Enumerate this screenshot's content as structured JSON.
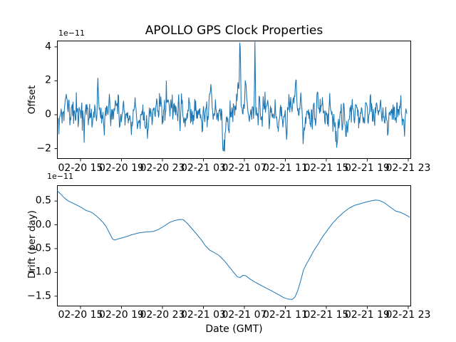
{
  "figure": {
    "title": "APOLLO GPS Clock Properties",
    "background": "#ffffff",
    "line_color": "#1f77b4",
    "spine_color": "#000000"
  },
  "chart_data": [
    {
      "type": "line",
      "title": "APOLLO GPS Clock Properties",
      "ylabel": "Offset",
      "xlabel": "",
      "y_offset_multiplier": "1e−11",
      "legend": "none",
      "grid": false,
      "ylim": [
        -2.61,
        4.37
      ],
      "y_ticks": {
        "values": [
          4,
          2,
          0,
          -2
        ],
        "labels": [
          "4",
          "2",
          "0",
          "−2"
        ]
      },
      "x_ticks": {
        "fracs": [
          0.0664,
          0.1821,
          0.2978,
          0.4135,
          0.5291,
          0.6448,
          0.7605,
          0.8762,
          0.9919
        ],
        "labels": [
          "02-20 15",
          "02-20 19",
          "02-20 23",
          "02-21 03",
          "02-21 07",
          "02-21 11",
          "02-21 15",
          "02-21 19",
          "02-21 23"
        ]
      },
      "series_model": {
        "description": "dense noisy offset series, values in 1e-11 units",
        "seed": 11,
        "n": 760,
        "phi": 0.5,
        "sigma": 0.42,
        "mean": 0.07,
        "x_start": 0.004,
        "x_end": 0.988,
        "clamp": [
          -2.5,
          4.28
        ],
        "features": [
          [
            0.006,
            -0.5,
            0.006
          ],
          [
            0.026,
            1.0,
            0.01
          ],
          [
            0.076,
            -1.4,
            0.008
          ],
          [
            0.115,
            1.8,
            0.007
          ],
          [
            0.148,
            1.2,
            0.008
          ],
          [
            0.209,
            -0.9,
            0.01
          ],
          [
            0.251,
            -1.2,
            0.008
          ],
          [
            0.3,
            0.8,
            0.01
          ],
          [
            0.435,
            1.5,
            0.01
          ],
          [
            0.47,
            -1.6,
            0.009
          ],
          [
            0.512,
            1.5,
            0.012
          ],
          [
            0.517,
            3.9,
            0.005
          ],
          [
            0.533,
            1.7,
            0.007
          ],
          [
            0.559,
            4.05,
            0.003
          ],
          [
            0.648,
            -1.0,
            0.009
          ],
          [
            0.674,
            1.6,
            0.01
          ],
          [
            0.695,
            -2.2,
            0.008
          ],
          [
            0.736,
            1.2,
            0.008
          ],
          [
            0.79,
            -1.55,
            0.008
          ],
          [
            0.885,
            1.1,
            0.008
          ],
          [
            0.934,
            -1.15,
            0.008
          ]
        ]
      }
    },
    {
      "type": "line",
      "title": "",
      "ylabel": "Drift (per day)",
      "xlabel": "Date (GMT)",
      "y_offset_multiplier": "1e−11",
      "legend": "none",
      "grid": false,
      "ylim": [
        -1.71,
        0.83
      ],
      "y_ticks": {
        "values": [
          0.5,
          0.0,
          -0.5,
          -1.0,
          -1.5
        ],
        "labels": [
          "0.5",
          "0.0",
          "−0.5",
          "−1.0",
          "−1.5"
        ]
      },
      "x_ticks": {
        "fracs": [
          0.0664,
          0.1821,
          0.2978,
          0.4135,
          0.5291,
          0.6448,
          0.7605,
          0.8762,
          0.9919
        ],
        "labels": [
          "02-20 15",
          "02-20 19",
          "02-20 23",
          "02-21 03",
          "02-21 07",
          "02-21 11",
          "02-21 15",
          "02-21 19",
          "02-21 23"
        ]
      },
      "points": [
        [
          0.0,
          0.72
        ],
        [
          0.01,
          0.65
        ],
        [
          0.02,
          0.57
        ],
        [
          0.03,
          0.51
        ],
        [
          0.04,
          0.47
        ],
        [
          0.052,
          0.43
        ],
        [
          0.062,
          0.39
        ],
        [
          0.072,
          0.35
        ],
        [
          0.082,
          0.3
        ],
        [
          0.092,
          0.28
        ],
        [
          0.102,
          0.24
        ],
        [
          0.112,
          0.18
        ],
        [
          0.121,
          0.12
        ],
        [
          0.131,
          0.04
        ],
        [
          0.139,
          -0.04
        ],
        [
          0.148,
          -0.17
        ],
        [
          0.157,
          -0.3
        ],
        [
          0.163,
          -0.32
        ],
        [
          0.171,
          -0.3
        ],
        [
          0.191,
          -0.26
        ],
        [
          0.211,
          -0.21
        ],
        [
          0.231,
          -0.17
        ],
        [
          0.252,
          -0.15
        ],
        [
          0.272,
          -0.14
        ],
        [
          0.286,
          -0.1
        ],
        [
          0.302,
          -0.03
        ],
        [
          0.318,
          0.05
        ],
        [
          0.332,
          0.09
        ],
        [
          0.346,
          0.11
        ],
        [
          0.356,
          0.11
        ],
        [
          0.368,
          0.03
        ],
        [
          0.382,
          -0.09
        ],
        [
          0.396,
          -0.21
        ],
        [
          0.408,
          -0.32
        ],
        [
          0.419,
          -0.44
        ],
        [
          0.431,
          -0.53
        ],
        [
          0.443,
          -0.58
        ],
        [
          0.457,
          -0.64
        ],
        [
          0.473,
          -0.76
        ],
        [
          0.487,
          -0.89
        ],
        [
          0.499,
          -1.0
        ],
        [
          0.509,
          -1.09
        ],
        [
          0.517,
          -1.11
        ],
        [
          0.525,
          -1.06
        ],
        [
          0.533,
          -1.07
        ],
        [
          0.547,
          -1.15
        ],
        [
          0.563,
          -1.22
        ],
        [
          0.583,
          -1.3
        ],
        [
          0.604,
          -1.38
        ],
        [
          0.624,
          -1.46
        ],
        [
          0.64,
          -1.53
        ],
        [
          0.652,
          -1.56
        ],
        [
          0.664,
          -1.57
        ],
        [
          0.672,
          -1.52
        ],
        [
          0.68,
          -1.38
        ],
        [
          0.688,
          -1.18
        ],
        [
          0.696,
          -0.95
        ],
        [
          0.704,
          -0.83
        ],
        [
          0.714,
          -0.7
        ],
        [
          0.724,
          -0.56
        ],
        [
          0.738,
          -0.4
        ],
        [
          0.75,
          -0.25
        ],
        [
          0.765,
          -0.1
        ],
        [
          0.779,
          0.04
        ],
        [
          0.793,
          0.15
        ],
        [
          0.809,
          0.26
        ],
        [
          0.825,
          0.35
        ],
        [
          0.841,
          0.41
        ],
        [
          0.855,
          0.44
        ],
        [
          0.869,
          0.47
        ],
        [
          0.885,
          0.5
        ],
        [
          0.899,
          0.52
        ],
        [
          0.911,
          0.51
        ],
        [
          0.925,
          0.46
        ],
        [
          0.941,
          0.37
        ],
        [
          0.956,
          0.29
        ],
        [
          0.97,
          0.26
        ],
        [
          0.982,
          0.22
        ],
        [
          0.996,
          0.16
        ]
      ]
    }
  ]
}
